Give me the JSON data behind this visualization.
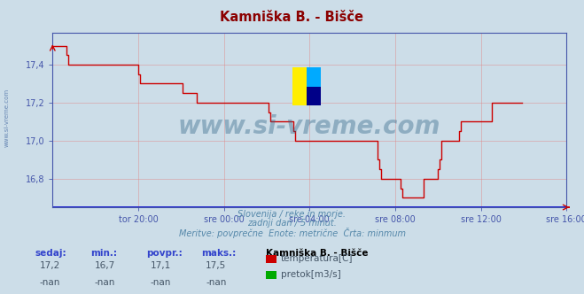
{
  "title": "Kamniška B. - Bišče",
  "title_color": "#8b0000",
  "bg_color": "#ccdde8",
  "plot_bg_color": "#ccdde8",
  "grid_color": "#e08080",
  "axis_color": "#4455aa",
  "line_color": "#cc0000",
  "line_color_blue": "#0000cc",
  "xlim": [
    0,
    288
  ],
  "ylim": [
    16.65,
    17.57
  ],
  "yticks": [
    16.8,
    17.0,
    17.2,
    17.4
  ],
  "xtick_labels": [
    "tor 20:00",
    "sre 00:00",
    "sre 04:00",
    "sre 08:00",
    "sre 12:00",
    "sre 16:00"
  ],
  "xtick_positions": [
    48,
    96,
    144,
    192,
    240,
    288
  ],
  "watermark": "www.si-vreme.com",
  "watermark_color": "#336688",
  "watermark_alpha": 0.4,
  "left_text": "www.si-vreme.com",
  "left_text_color": "#5577aa",
  "subtitle1": "Slovenija / reke in morje.",
  "subtitle2": "zadnji dan / 5 minut.",
  "subtitle3": "Meritve: povprečne  Enote: metrične  Črta: minmum",
  "subtitle_color": "#5588aa",
  "footer_label_color": "#3344cc",
  "footer_value_color": "#445566",
  "station_name": "Kamniška B. - Bišče",
  "station_name_color": "#000000",
  "headers": [
    "sedaj:",
    "min.:",
    "povpr.:",
    "maks.:"
  ],
  "values_row1": [
    "17,2",
    "16,7",
    "17,1",
    "17,5"
  ],
  "values_row2": [
    "-nan",
    "-nan",
    "-nan",
    "-nan"
  ],
  "legend1": "temperatura[C]",
  "legend2": "pretok[m3/s]",
  "legend_color1": "#cc0000",
  "legend_color2": "#00aa00",
  "logo_yellow": "#ffee00",
  "logo_cyan": "#00aaff",
  "logo_darkblue": "#000088",
  "temp_data": [
    17.5,
    17.5,
    17.5,
    17.5,
    17.5,
    17.5,
    17.5,
    17.5,
    17.45,
    17.4,
    17.4,
    17.4,
    17.4,
    17.4,
    17.4,
    17.4,
    17.4,
    17.4,
    17.4,
    17.4,
    17.4,
    17.4,
    17.4,
    17.4,
    17.4,
    17.4,
    17.4,
    17.4,
    17.4,
    17.4,
    17.4,
    17.4,
    17.4,
    17.4,
    17.4,
    17.4,
    17.4,
    17.4,
    17.4,
    17.4,
    17.4,
    17.4,
    17.4,
    17.4,
    17.4,
    17.4,
    17.4,
    17.4,
    17.35,
    17.3,
    17.3,
    17.3,
    17.3,
    17.3,
    17.3,
    17.3,
    17.3,
    17.3,
    17.3,
    17.3,
    17.3,
    17.3,
    17.3,
    17.3,
    17.3,
    17.3,
    17.3,
    17.3,
    17.3,
    17.3,
    17.3,
    17.3,
    17.3,
    17.25,
    17.25,
    17.25,
    17.25,
    17.25,
    17.25,
    17.25,
    17.25,
    17.2,
    17.2,
    17.2,
    17.2,
    17.2,
    17.2,
    17.2,
    17.2,
    17.2,
    17.2,
    17.2,
    17.2,
    17.2,
    17.2,
    17.2,
    17.2,
    17.2,
    17.2,
    17.2,
    17.2,
    17.2,
    17.2,
    17.2,
    17.2,
    17.2,
    17.2,
    17.2,
    17.2,
    17.2,
    17.2,
    17.2,
    17.2,
    17.2,
    17.2,
    17.2,
    17.2,
    17.2,
    17.2,
    17.2,
    17.2,
    17.15,
    17.1,
    17.1,
    17.1,
    17.1,
    17.1,
    17.1,
    17.1,
    17.1,
    17.1,
    17.1,
    17.1,
    17.1,
    17.1,
    17.05,
    17.0,
    17.0,
    17.0,
    17.0,
    17.0,
    17.0,
    17.0,
    17.0,
    17.0,
    17.0,
    17.0,
    17.0,
    17.0,
    17.0,
    17.0,
    17.0,
    17.0,
    17.0,
    17.0,
    17.0,
    17.0,
    17.0,
    17.0,
    17.0,
    17.0,
    17.0,
    17.0,
    17.0,
    17.0,
    17.0,
    17.0,
    17.0,
    17.0,
    17.0,
    17.0,
    17.0,
    17.0,
    17.0,
    17.0,
    17.0,
    17.0,
    17.0,
    17.0,
    17.0,
    17.0,
    17.0,
    16.9,
    16.85,
    16.8,
    16.8,
    16.8,
    16.8,
    16.8,
    16.8,
    16.8,
    16.8,
    16.8,
    16.8,
    16.8,
    16.75,
    16.7,
    16.7,
    16.7,
    16.7,
    16.7,
    16.7,
    16.7,
    16.7,
    16.7,
    16.7,
    16.7,
    16.7,
    16.8,
    16.8,
    16.8,
    16.8,
    16.8,
    16.8,
    16.8,
    16.8,
    16.85,
    16.9,
    17.0,
    17.0,
    17.0,
    17.0,
    17.0,
    17.0,
    17.0,
    17.0,
    17.0,
    17.0,
    17.05,
    17.1,
    17.1,
    17.1,
    17.1,
    17.1,
    17.1,
    17.1,
    17.1,
    17.1,
    17.1,
    17.1,
    17.1,
    17.1,
    17.1,
    17.1,
    17.1,
    17.1,
    17.2,
    17.2,
    17.2,
    17.2,
    17.2,
    17.2,
    17.2,
    17.2,
    17.2,
    17.2,
    17.2,
    17.2,
    17.2,
    17.2,
    17.2,
    17.2,
    17.2,
    17.2
  ]
}
